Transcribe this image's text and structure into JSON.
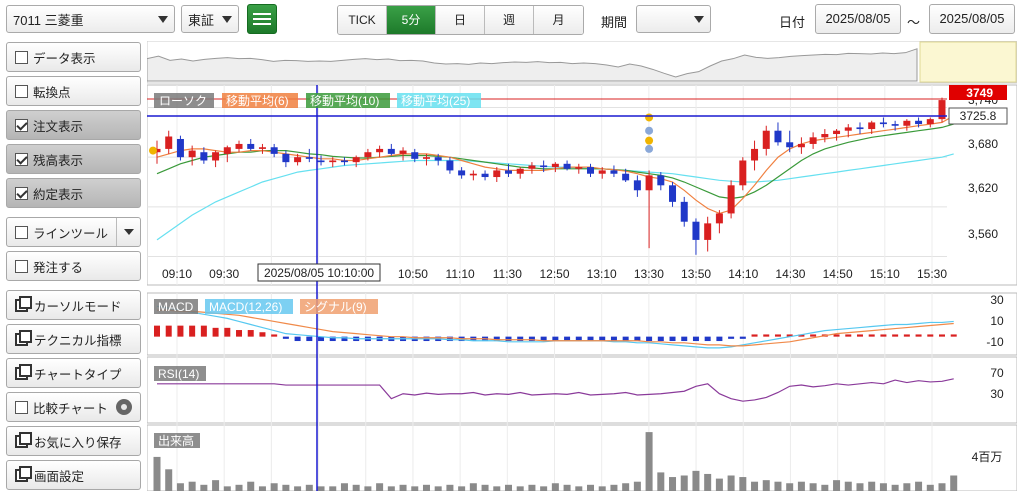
{
  "toolbar": {
    "symbol": "7011 三菱重",
    "market": "東証",
    "periods": [
      "TICK",
      "5分",
      "日",
      "週",
      "月"
    ],
    "active_period": "5分",
    "range_label": "期間",
    "range_value": "",
    "date_label": "日付",
    "date_from": "2025/08/05",
    "date_sep": "～",
    "date_to": "2025/08/05"
  },
  "sidebar": {
    "items": [
      {
        "label": "データ表示",
        "type": "checkbox",
        "checked": false
      },
      {
        "label": "転換点",
        "type": "checkbox",
        "checked": false
      },
      {
        "label": "注文表示",
        "type": "checkbox",
        "checked": true
      },
      {
        "label": "残高表示",
        "type": "checkbox",
        "checked": true
      },
      {
        "label": "約定表示",
        "type": "checkbox",
        "checked": true
      },
      {
        "label": "ラインツール",
        "type": "checkbox-dropdown",
        "checked": false
      },
      {
        "label": "発注する",
        "type": "checkbox",
        "checked": false
      },
      {
        "label": "カーソルモード",
        "type": "window"
      },
      {
        "label": "テクニカル指標",
        "type": "window"
      },
      {
        "label": "チャートタイプ",
        "type": "window"
      },
      {
        "label": "比較チャート",
        "type": "checkbox-gear",
        "checked": false
      },
      {
        "label": "お気に入り保存",
        "type": "window"
      },
      {
        "label": "画面設定",
        "type": "window"
      }
    ]
  },
  "legend": {
    "candle": "ローソク",
    "ma6": "移動平均(6)",
    "ma10": "移動平均(10)",
    "ma25": "移動平均(25)",
    "macd": "MACD",
    "macd_params": "MACD(12,26)",
    "signal": "シグナル(9)",
    "rsi": "RSI(14)",
    "volume": "出来高"
  },
  "price_panel": {
    "last_price": "3749",
    "crosshair_price": "3725.8",
    "crosshair_time": "2025/08/05 10:10:00",
    "y_ticks": [
      "3,740",
      "3,680",
      "3,620",
      "3,560"
    ],
    "x_ticks": [
      "09:10",
      "09:30",
      "09:50",
      "10:10",
      "10:30",
      "10:50",
      "11:10",
      "11:30",
      "12:50",
      "13:10",
      "13:30",
      "13:50",
      "14:10",
      "14:30",
      "14:50",
      "15:10",
      "15:30"
    ]
  },
  "macd_panel": {
    "y_ticks": [
      "30",
      "10",
      "-10"
    ]
  },
  "rsi_panel": {
    "y_ticks": [
      "70",
      "30"
    ]
  },
  "volume_panel": {
    "y_ticks": [
      "4百万"
    ]
  },
  "colors": {
    "up": "#d92020",
    "down": "#2038c8",
    "ma6": "#f08040",
    "ma10": "#3a9a3a",
    "ma25": "#66e0f0",
    "accent": "#1e8a2e",
    "crosshair": "#1a1ad0",
    "rsi": "#8a3a9a",
    "volume": "#8a8a8a"
  },
  "chart_data": {
    "type": "candlestick",
    "date": "2025/08/05",
    "interval": "5分",
    "ylim": [
      3540,
      3760
    ],
    "candles": [
      {
        "o": 3686,
        "h": 3700,
        "l": 3672,
        "c": 3690
      },
      {
        "o": 3690,
        "h": 3712,
        "l": 3684,
        "c": 3705
      },
      {
        "o": 3702,
        "h": 3706,
        "l": 3676,
        "c": 3680
      },
      {
        "o": 3680,
        "h": 3694,
        "l": 3670,
        "c": 3688
      },
      {
        "o": 3686,
        "h": 3692,
        "l": 3672,
        "c": 3676
      },
      {
        "o": 3676,
        "h": 3688,
        "l": 3668,
        "c": 3686
      },
      {
        "o": 3684,
        "h": 3694,
        "l": 3674,
        "c": 3692
      },
      {
        "o": 3690,
        "h": 3700,
        "l": 3686,
        "c": 3696
      },
      {
        "o": 3696,
        "h": 3702,
        "l": 3688,
        "c": 3690
      },
      {
        "o": 3690,
        "h": 3696,
        "l": 3684,
        "c": 3692
      },
      {
        "o": 3692,
        "h": 3696,
        "l": 3680,
        "c": 3684
      },
      {
        "o": 3684,
        "h": 3688,
        "l": 3668,
        "c": 3674
      },
      {
        "o": 3674,
        "h": 3684,
        "l": 3670,
        "c": 3680
      },
      {
        "o": 3680,
        "h": 3690,
        "l": 3674,
        "c": 3678
      },
      {
        "o": 3676,
        "h": 3682,
        "l": 3670,
        "c": 3674
      },
      {
        "o": 3674,
        "h": 3680,
        "l": 3668,
        "c": 3676
      },
      {
        "o": 3676,
        "h": 3680,
        "l": 3670,
        "c": 3674
      },
      {
        "o": 3674,
        "h": 3682,
        "l": 3668,
        "c": 3680
      },
      {
        "o": 3680,
        "h": 3690,
        "l": 3676,
        "c": 3686
      },
      {
        "o": 3686,
        "h": 3694,
        "l": 3680,
        "c": 3690
      },
      {
        "o": 3690,
        "h": 3696,
        "l": 3682,
        "c": 3684
      },
      {
        "o": 3684,
        "h": 3692,
        "l": 3676,
        "c": 3688
      },
      {
        "o": 3686,
        "h": 3690,
        "l": 3674,
        "c": 3678
      },
      {
        "o": 3678,
        "h": 3684,
        "l": 3670,
        "c": 3680
      },
      {
        "o": 3680,
        "h": 3684,
        "l": 3670,
        "c": 3676
      },
      {
        "o": 3676,
        "h": 3680,
        "l": 3660,
        "c": 3664
      },
      {
        "o": 3664,
        "h": 3668,
        "l": 3654,
        "c": 3658
      },
      {
        "o": 3658,
        "h": 3664,
        "l": 3652,
        "c": 3660
      },
      {
        "o": 3660,
        "h": 3664,
        "l": 3652,
        "c": 3656
      },
      {
        "o": 3656,
        "h": 3668,
        "l": 3650,
        "c": 3664
      },
      {
        "o": 3664,
        "h": 3672,
        "l": 3656,
        "c": 3660
      },
      {
        "o": 3660,
        "h": 3668,
        "l": 3654,
        "c": 3666
      },
      {
        "o": 3666,
        "h": 3674,
        "l": 3660,
        "c": 3670
      },
      {
        "o": 3670,
        "h": 3676,
        "l": 3662,
        "c": 3668
      },
      {
        "o": 3668,
        "h": 3674,
        "l": 3662,
        "c": 3672
      },
      {
        "o": 3672,
        "h": 3676,
        "l": 3664,
        "c": 3666
      },
      {
        "o": 3666,
        "h": 3672,
        "l": 3660,
        "c": 3668
      },
      {
        "o": 3668,
        "h": 3672,
        "l": 3656,
        "c": 3660
      },
      {
        "o": 3660,
        "h": 3668,
        "l": 3654,
        "c": 3664
      },
      {
        "o": 3664,
        "h": 3670,
        "l": 3656,
        "c": 3660
      },
      {
        "o": 3660,
        "h": 3666,
        "l": 3650,
        "c": 3652
      },
      {
        "o": 3652,
        "h": 3658,
        "l": 3632,
        "c": 3640
      },
      {
        "o": 3640,
        "h": 3664,
        "l": 3570,
        "c": 3658
      },
      {
        "o": 3658,
        "h": 3662,
        "l": 3640,
        "c": 3646
      },
      {
        "o": 3646,
        "h": 3650,
        "l": 3620,
        "c": 3626
      },
      {
        "o": 3626,
        "h": 3632,
        "l": 3596,
        "c": 3602
      },
      {
        "o": 3602,
        "h": 3606,
        "l": 3562,
        "c": 3580
      },
      {
        "o": 3580,
        "h": 3608,
        "l": 3566,
        "c": 3600
      },
      {
        "o": 3600,
        "h": 3616,
        "l": 3588,
        "c": 3612
      },
      {
        "o": 3612,
        "h": 3652,
        "l": 3606,
        "c": 3646
      },
      {
        "o": 3646,
        "h": 3680,
        "l": 3640,
        "c": 3676
      },
      {
        "o": 3676,
        "h": 3700,
        "l": 3664,
        "c": 3690
      },
      {
        "o": 3690,
        "h": 3718,
        "l": 3682,
        "c": 3712
      },
      {
        "o": 3712,
        "h": 3722,
        "l": 3694,
        "c": 3698
      },
      {
        "o": 3698,
        "h": 3712,
        "l": 3686,
        "c": 3692
      },
      {
        "o": 3692,
        "h": 3704,
        "l": 3684,
        "c": 3696
      },
      {
        "o": 3696,
        "h": 3710,
        "l": 3690,
        "c": 3704
      },
      {
        "o": 3704,
        "h": 3714,
        "l": 3698,
        "c": 3708
      },
      {
        "o": 3708,
        "h": 3714,
        "l": 3700,
        "c": 3712
      },
      {
        "o": 3712,
        "h": 3720,
        "l": 3704,
        "c": 3716
      },
      {
        "o": 3716,
        "h": 3722,
        "l": 3708,
        "c": 3714
      },
      {
        "o": 3714,
        "h": 3724,
        "l": 3708,
        "c": 3722
      },
      {
        "o": 3722,
        "h": 3728,
        "l": 3716,
        "c": 3720
      },
      {
        "o": 3720,
        "h": 3724,
        "l": 3712,
        "c": 3718
      },
      {
        "o": 3718,
        "h": 3726,
        "l": 3712,
        "c": 3724
      },
      {
        "o": 3724,
        "h": 3728,
        "l": 3716,
        "c": 3720
      },
      {
        "o": 3720,
        "h": 3728,
        "l": 3716,
        "c": 3726
      },
      {
        "o": 3726,
        "h": 3752,
        "l": 3722,
        "c": 3749
      }
    ],
    "ma6": [
      3680,
      3684,
      3688,
      3690,
      3690,
      3688,
      3686,
      3686,
      3688,
      3688,
      3686,
      3684,
      3682,
      3680,
      3678,
      3678,
      3676,
      3676,
      3678,
      3680,
      3682,
      3684,
      3684,
      3684,
      3682,
      3680,
      3676,
      3672,
      3668,
      3666,
      3664,
      3664,
      3664,
      3664,
      3666,
      3668,
      3668,
      3668,
      3666,
      3665,
      3663,
      3660,
      3656,
      3654,
      3650,
      3640,
      3628,
      3618,
      3612,
      3616,
      3630,
      3646,
      3664,
      3680,
      3690,
      3696,
      3700,
      3702,
      3704,
      3706,
      3708,
      3710,
      3712,
      3714,
      3716,
      3718,
      3720,
      3722,
      3730
    ],
    "ma10": [
      3660,
      3666,
      3672,
      3676,
      3680,
      3682,
      3684,
      3686,
      3686,
      3688,
      3688,
      3688,
      3686,
      3684,
      3683,
      3681,
      3680,
      3679,
      3679,
      3680,
      3681,
      3682,
      3682,
      3682,
      3681,
      3680,
      3678,
      3676,
      3674,
      3672,
      3670,
      3668,
      3667,
      3666,
      3666,
      3666,
      3666,
      3666,
      3666,
      3665,
      3664,
      3662,
      3660,
      3658,
      3655,
      3650,
      3644,
      3638,
      3632,
      3630,
      3632,
      3638,
      3646,
      3656,
      3666,
      3676,
      3684,
      3690,
      3694,
      3698,
      3701,
      3704,
      3706,
      3708,
      3710,
      3712,
      3714,
      3716,
      3720
    ],
    "ma25": [
      3580,
      3590,
      3600,
      3610,
      3618,
      3626,
      3632,
      3638,
      3644,
      3650,
      3654,
      3658,
      3662,
      3664,
      3666,
      3668,
      3670,
      3671,
      3672,
      3673,
      3674,
      3675,
      3676,
      3676,
      3676,
      3676,
      3676,
      3675,
      3674,
      3673,
      3672,
      3671,
      3670,
      3669,
      3668,
      3668,
      3667,
      3666,
      3666,
      3665,
      3664,
      3663,
      3662,
      3661,
      3660,
      3658,
      3656,
      3654,
      3652,
      3651,
      3650,
      3650,
      3651,
      3652,
      3654,
      3656,
      3658,
      3660,
      3662,
      3664,
      3666,
      3668,
      3670,
      3672,
      3674,
      3676,
      3678,
      3680,
      3684
    ],
    "macd": [
      26,
      24,
      22,
      20,
      18,
      16,
      14,
      11,
      8,
      5,
      2,
      -1,
      -2,
      -3,
      -4,
      -5,
      -5,
      -6,
      -6,
      -6,
      -6,
      -6,
      -6,
      -6,
      -6,
      -7,
      -7,
      -8,
      -8,
      -8,
      -9,
      -9,
      -9,
      -9,
      -8,
      -8,
      -8,
      -8,
      -8,
      -9,
      -9,
      -10,
      -10,
      -11,
      -12,
      -13,
      -14,
      -15,
      -15,
      -14,
      -12,
      -10,
      -8,
      -6,
      -4,
      -2,
      0,
      2,
      3,
      4,
      5,
      6,
      7,
      8,
      8,
      9,
      10,
      10,
      11
    ],
    "signal": [
      22,
      22,
      21,
      21,
      20,
      19,
      18,
      17,
      15,
      13,
      11,
      9,
      7,
      5,
      3,
      1,
      0,
      -1,
      -2,
      -3,
      -4,
      -4,
      -5,
      -5,
      -5,
      -5,
      -6,
      -6,
      -6,
      -7,
      -7,
      -7,
      -7,
      -8,
      -8,
      -8,
      -8,
      -8,
      -8,
      -8,
      -8,
      -8,
      -9,
      -9,
      -10,
      -10,
      -11,
      -12,
      -12,
      -13,
      -13,
      -12,
      -11,
      -10,
      -9,
      -7,
      -5,
      -3,
      -1,
      0,
      1,
      2,
      3,
      4,
      5,
      6,
      7,
      8,
      9
    ],
    "hist": [
      5,
      5,
      5,
      5,
      5,
      4,
      4,
      3,
      3,
      2,
      1,
      -1,
      -2,
      -2,
      -2,
      -2,
      -2,
      -2,
      -2,
      -2,
      -2,
      -2,
      -2,
      -2,
      -2,
      -2,
      -2,
      -2,
      -2,
      -2,
      -2,
      -2,
      -2,
      -2,
      -2,
      -2,
      -2,
      -2,
      -2,
      -2,
      -2,
      -2,
      -2,
      -2,
      -2,
      -2,
      -2,
      -2,
      -2,
      -1,
      -1,
      1,
      1,
      1,
      1,
      1,
      1,
      1,
      1,
      1,
      1,
      1,
      1,
      1,
      1,
      1,
      1,
      1,
      1
    ],
    "rsi": [
      60,
      60,
      60,
      60,
      60,
      60,
      60,
      60,
      60,
      60,
      60,
      58,
      58,
      58,
      58,
      58,
      58,
      58,
      58,
      58,
      36,
      44,
      42,
      45,
      43,
      44,
      44,
      46,
      42,
      44,
      43,
      46,
      42,
      43,
      44,
      43,
      46,
      42,
      43,
      44,
      46,
      42,
      43,
      44,
      46,
      48,
      56,
      60,
      44,
      36,
      32,
      34,
      38,
      46,
      56,
      58,
      55,
      57,
      60,
      58,
      60,
      62,
      60,
      66,
      62,
      65,
      63,
      64,
      68
    ],
    "volume": [
      2.2,
      1.4,
      0.5,
      0.6,
      0.4,
      0.7,
      0.3,
      0.4,
      0.6,
      0.3,
      0.5,
      0.4,
      0.3,
      0.4,
      0.3,
      0.3,
      0.5,
      0.4,
      0.3,
      0.5,
      0.3,
      0.4,
      0.3,
      0.4,
      0.3,
      0.4,
      0.3,
      0.5,
      0.4,
      0.3,
      0.4,
      0.3,
      0.4,
      0.3,
      0.5,
      0.4,
      0.3,
      0.4,
      0.3,
      0.4,
      0.5,
      0.6,
      3.8,
      1.2,
      0.9,
      1.0,
      1.3,
      1.1,
      0.8,
      1.0,
      0.9,
      0.6,
      0.7,
      0.6,
      0.5,
      0.6,
      0.5,
      0.4,
      0.7,
      0.6,
      0.5,
      0.6,
      0.5,
      0.4,
      0.5,
      0.6,
      0.4,
      0.5,
      1.0
    ],
    "ylim_macd": [
      -20,
      35
    ],
    "ylim_rsi": [
      0,
      100
    ],
    "ylim_volume": [
      0,
      4
    ]
  }
}
